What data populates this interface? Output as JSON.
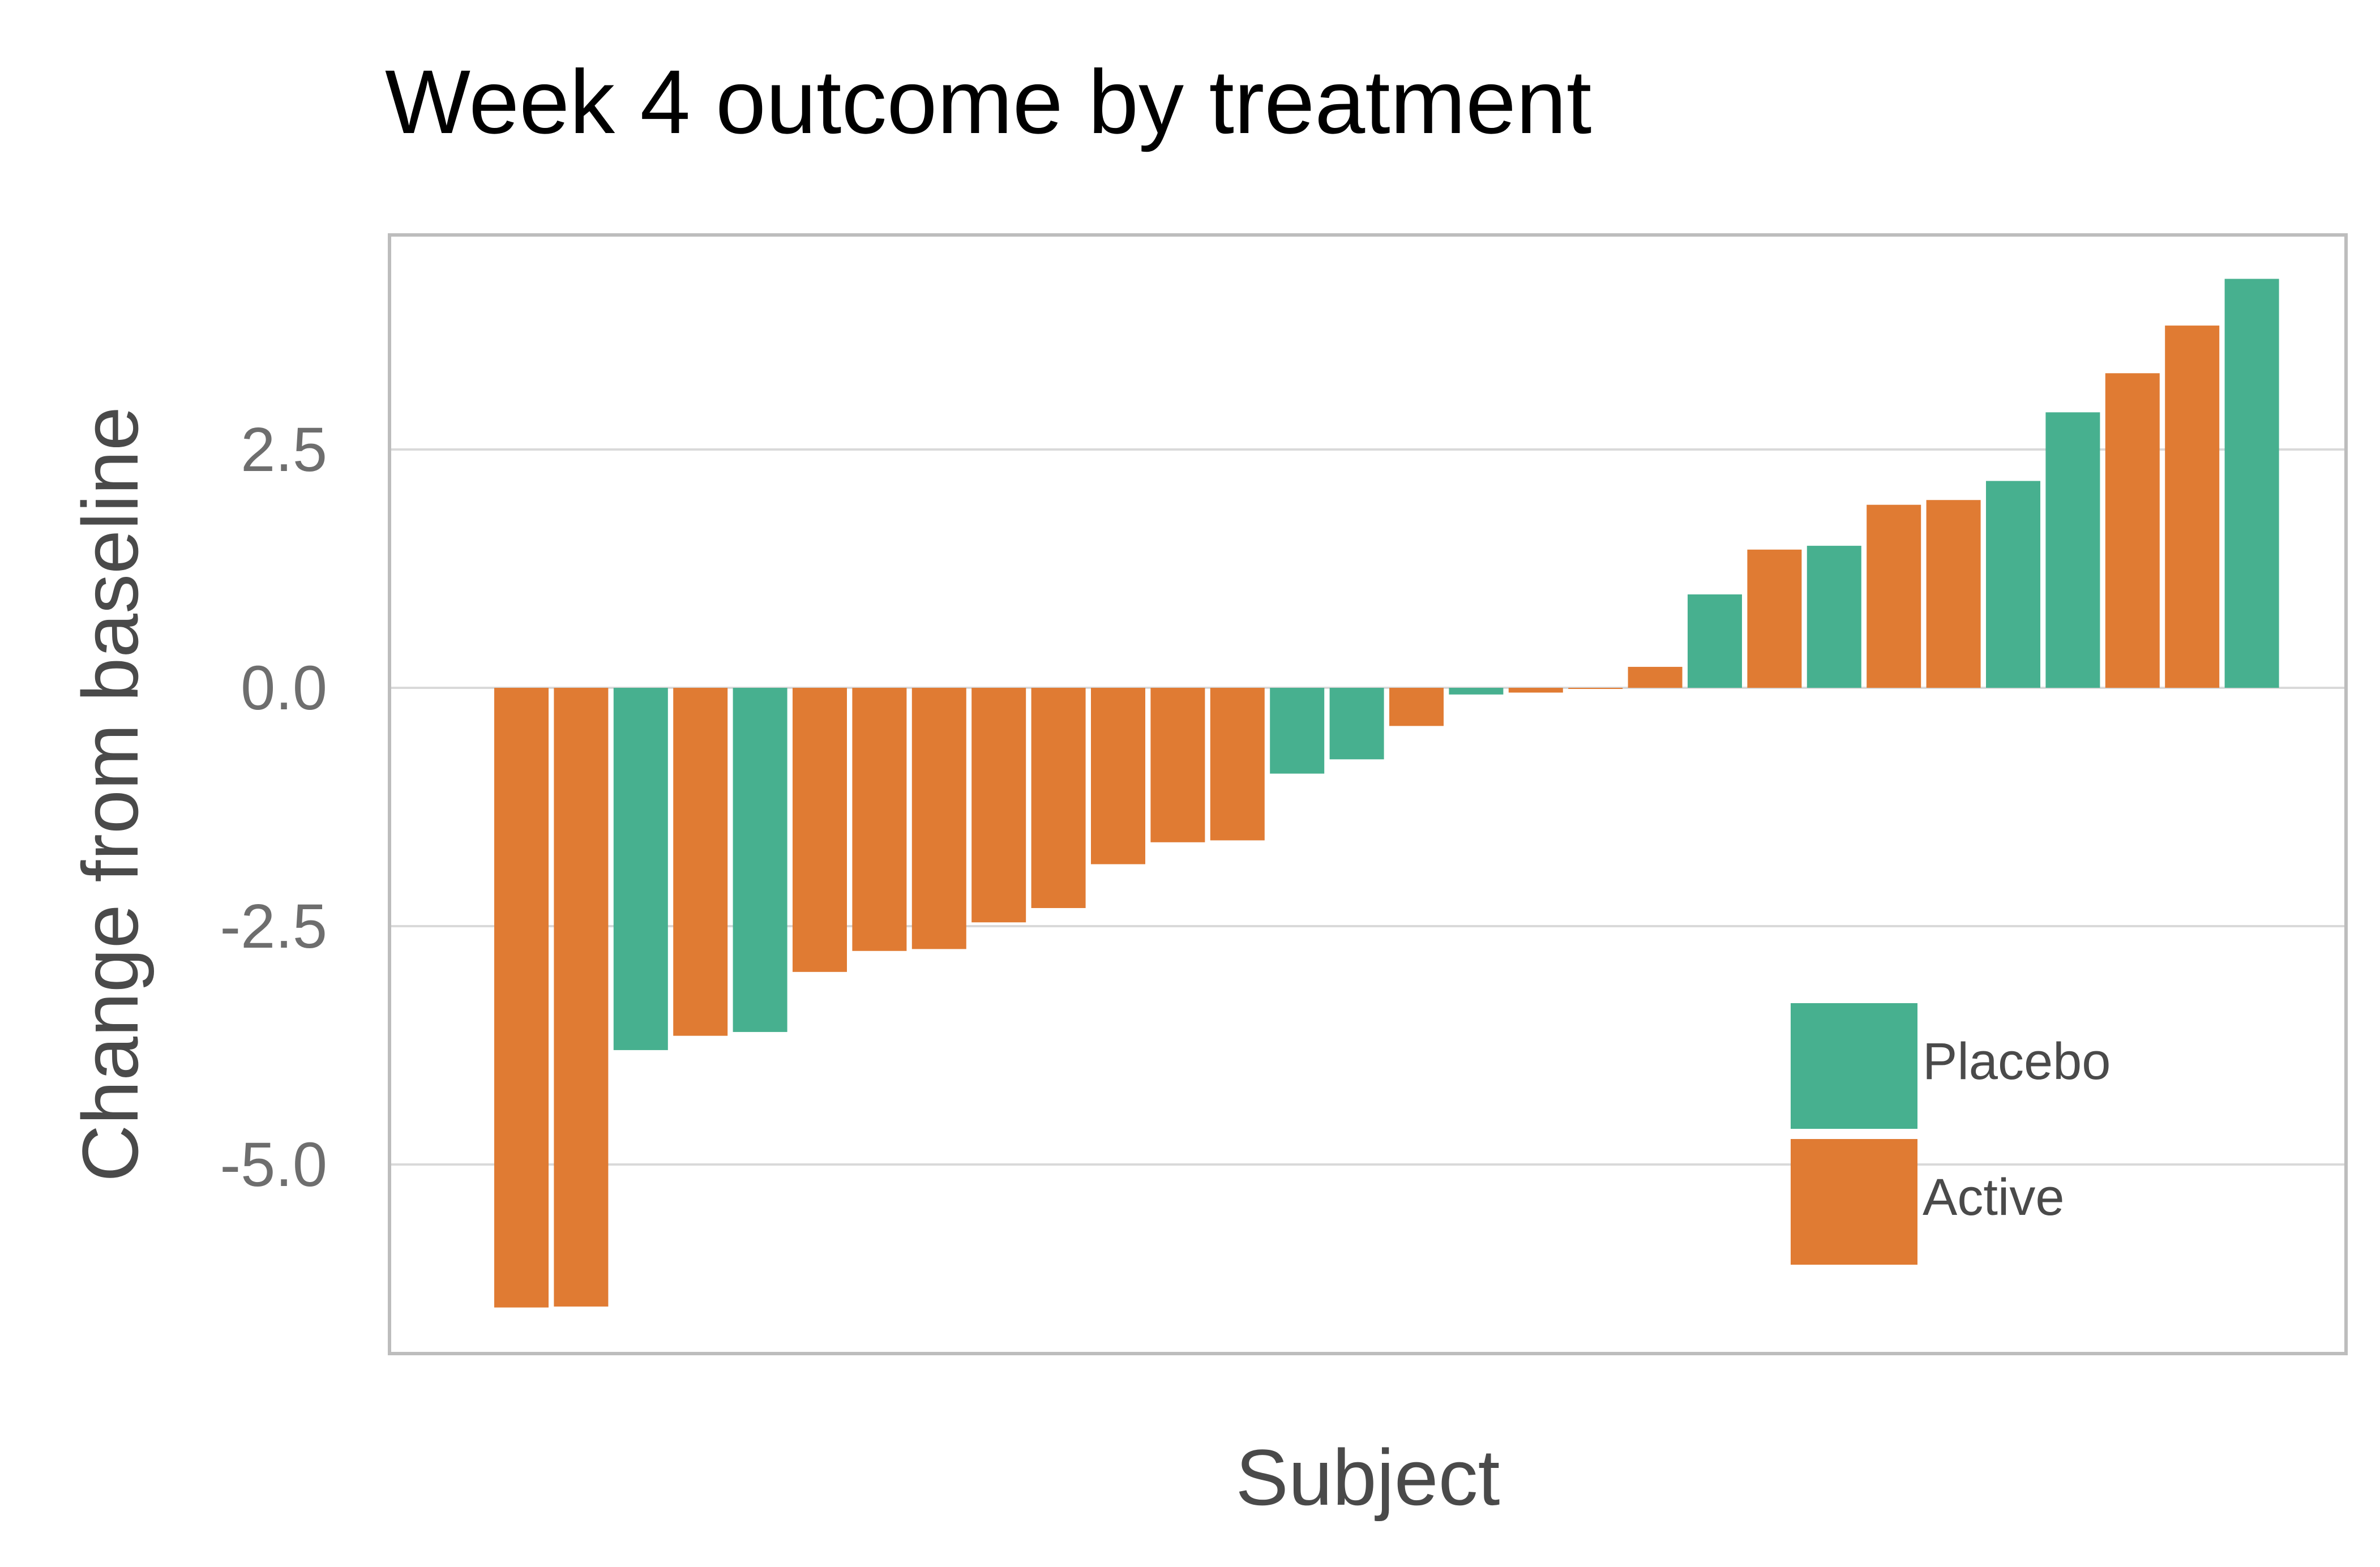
{
  "chart_data": {
    "type": "bar",
    "title": "Week 4 outcome by treatment",
    "xlabel": "Subject",
    "ylabel": "Change from baseline",
    "ylim": [
      -7.0,
      4.7
    ],
    "yticks": [
      -5.0,
      -2.5,
      0.0,
      2.5
    ],
    "ytick_labels": [
      "-5.0",
      "-2.5",
      "0.0",
      "2.5"
    ],
    "grid": "horizontal",
    "legend_position": "bottom-right inside plot",
    "colors": {
      "Placebo": "#47b08f",
      "Active": "#e07b33"
    },
    "legend": [
      "Placebo",
      "Active"
    ],
    "bars": [
      {
        "group": "Active",
        "value": -6.5
      },
      {
        "group": "Active",
        "value": -6.49
      },
      {
        "group": "Placebo",
        "value": -3.8
      },
      {
        "group": "Active",
        "value": -3.65
      },
      {
        "group": "Placebo",
        "value": -3.61
      },
      {
        "group": "Active",
        "value": -2.98
      },
      {
        "group": "Active",
        "value": -2.76
      },
      {
        "group": "Active",
        "value": -2.74
      },
      {
        "group": "Active",
        "value": -2.46
      },
      {
        "group": "Active",
        "value": -2.31
      },
      {
        "group": "Active",
        "value": -1.85
      },
      {
        "group": "Active",
        "value": -1.62
      },
      {
        "group": "Active",
        "value": -1.6
      },
      {
        "group": "Placebo",
        "value": -0.9
      },
      {
        "group": "Placebo",
        "value": -0.75
      },
      {
        "group": "Active",
        "value": -0.4
      },
      {
        "group": "Placebo",
        "value": -0.07
      },
      {
        "group": "Active",
        "value": -0.05
      },
      {
        "group": "Active",
        "value": -0.01
      },
      {
        "group": "Active",
        "value": 0.22
      },
      {
        "group": "Placebo",
        "value": 0.98
      },
      {
        "group": "Active",
        "value": 1.45
      },
      {
        "group": "Placebo",
        "value": 1.49
      },
      {
        "group": "Active",
        "value": 1.92
      },
      {
        "group": "Active",
        "value": 1.97
      },
      {
        "group": "Placebo",
        "value": 2.17
      },
      {
        "group": "Placebo",
        "value": 2.89
      },
      {
        "group": "Active",
        "value": 3.3
      },
      {
        "group": "Active",
        "value": 3.8
      },
      {
        "group": "Placebo",
        "value": 4.29
      }
    ]
  }
}
